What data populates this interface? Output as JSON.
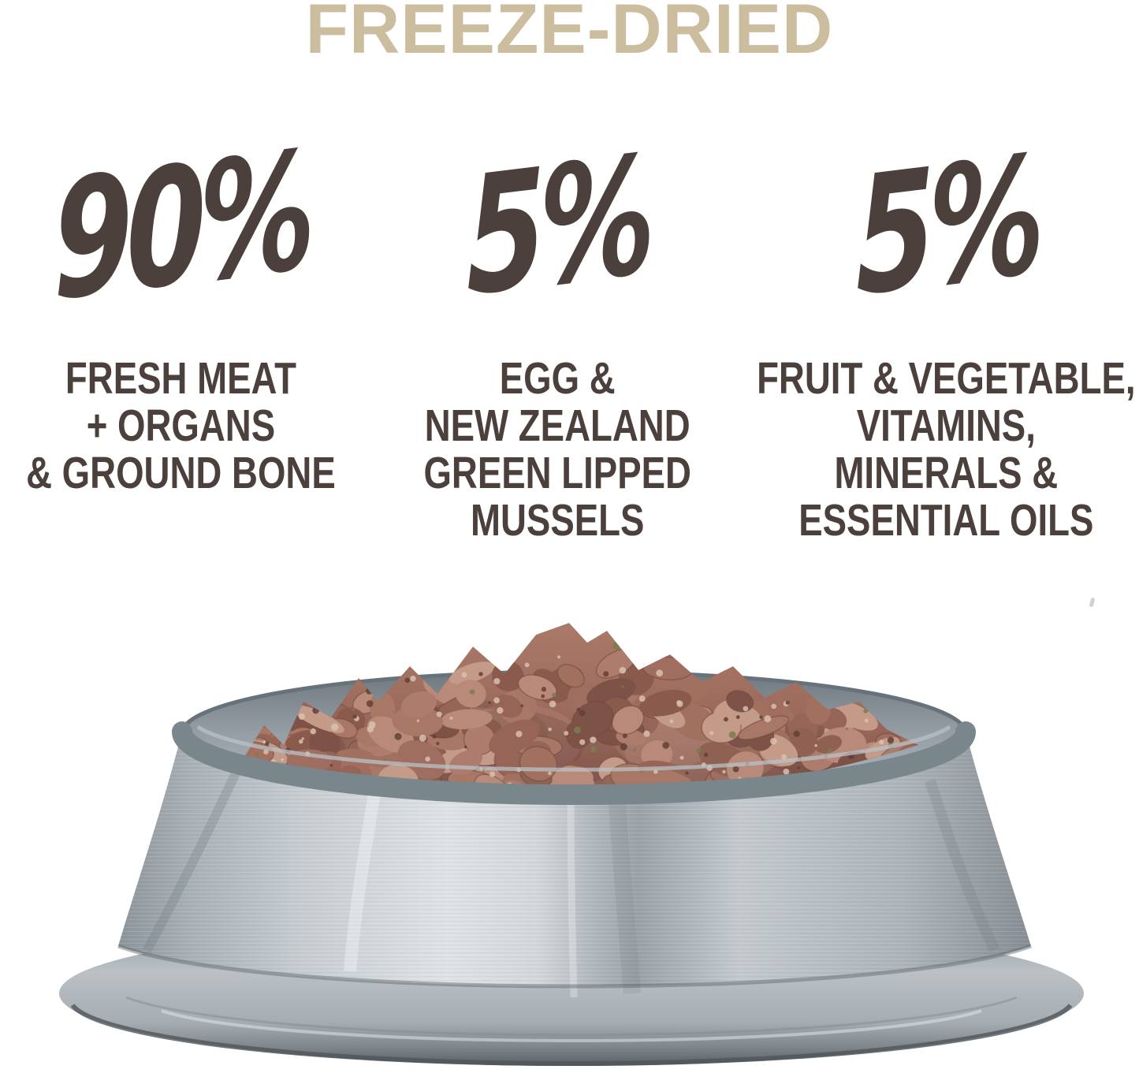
{
  "title": {
    "text": "FREEZE-DRIED"
  },
  "stats": [
    {
      "value": "90%",
      "label_lines": [
        "FRESH MEAT",
        "+ ORGANS",
        "& GROUND BONE"
      ]
    },
    {
      "value": "5%",
      "label_lines": [
        "EGG &",
        "NEW ZEALAND",
        "GREEN LIPPED",
        "MUSSELS"
      ]
    },
    {
      "value": "5%",
      "label_lines": [
        "FRUIT & VEGETABLE,",
        "VITAMINS,",
        "MINERALS &",
        "ESSENTIAL OILS"
      ]
    }
  ],
  "photo": {
    "description": "Stainless steel dog bowl piled high with freeze-dried raw meat nuggets"
  },
  "colors": {
    "background": "#ffffff",
    "title_tan": "#cdbd9f",
    "stat_text_brown": "#4c403d",
    "metal_light": "#dfe3e6",
    "metal_mid": "#b4bbc0",
    "metal_dark": "#5b6267",
    "food_brown": "#9a695b"
  }
}
